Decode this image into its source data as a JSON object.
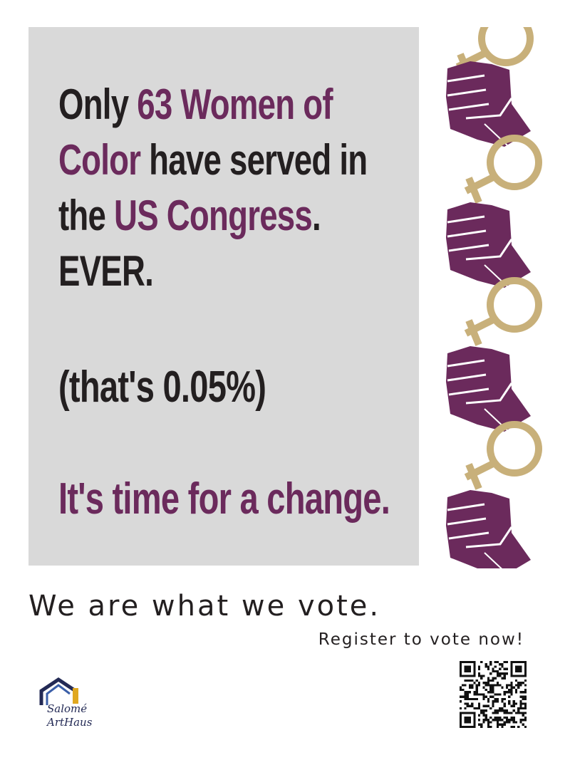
{
  "poster": {
    "headline": {
      "l1a": "Only ",
      "l1b": "63 Women of",
      "l2a": "Color",
      "l2b": " have served in",
      "l3a": "the ",
      "l3b": "US Congress",
      "l3c": ".",
      "l4": "EVER."
    },
    "percent_line": "(that's 0.05%)",
    "call_to_change": "It's time for a change."
  },
  "footer": {
    "slogan": "We are what we vote.",
    "register": "Register to vote now!"
  },
  "logo": {
    "line1": "Salomé",
    "line2": "ArtHaus"
  },
  "colors": {
    "purple": "#6b2a5c",
    "gold": "#c8b07a",
    "panel": "#d9d9d9",
    "text": "#231f20"
  },
  "icons": [
    "raised-fist-icon",
    "venus-symbol-icon",
    "qr-code-icon",
    "house-logo-icon"
  ]
}
